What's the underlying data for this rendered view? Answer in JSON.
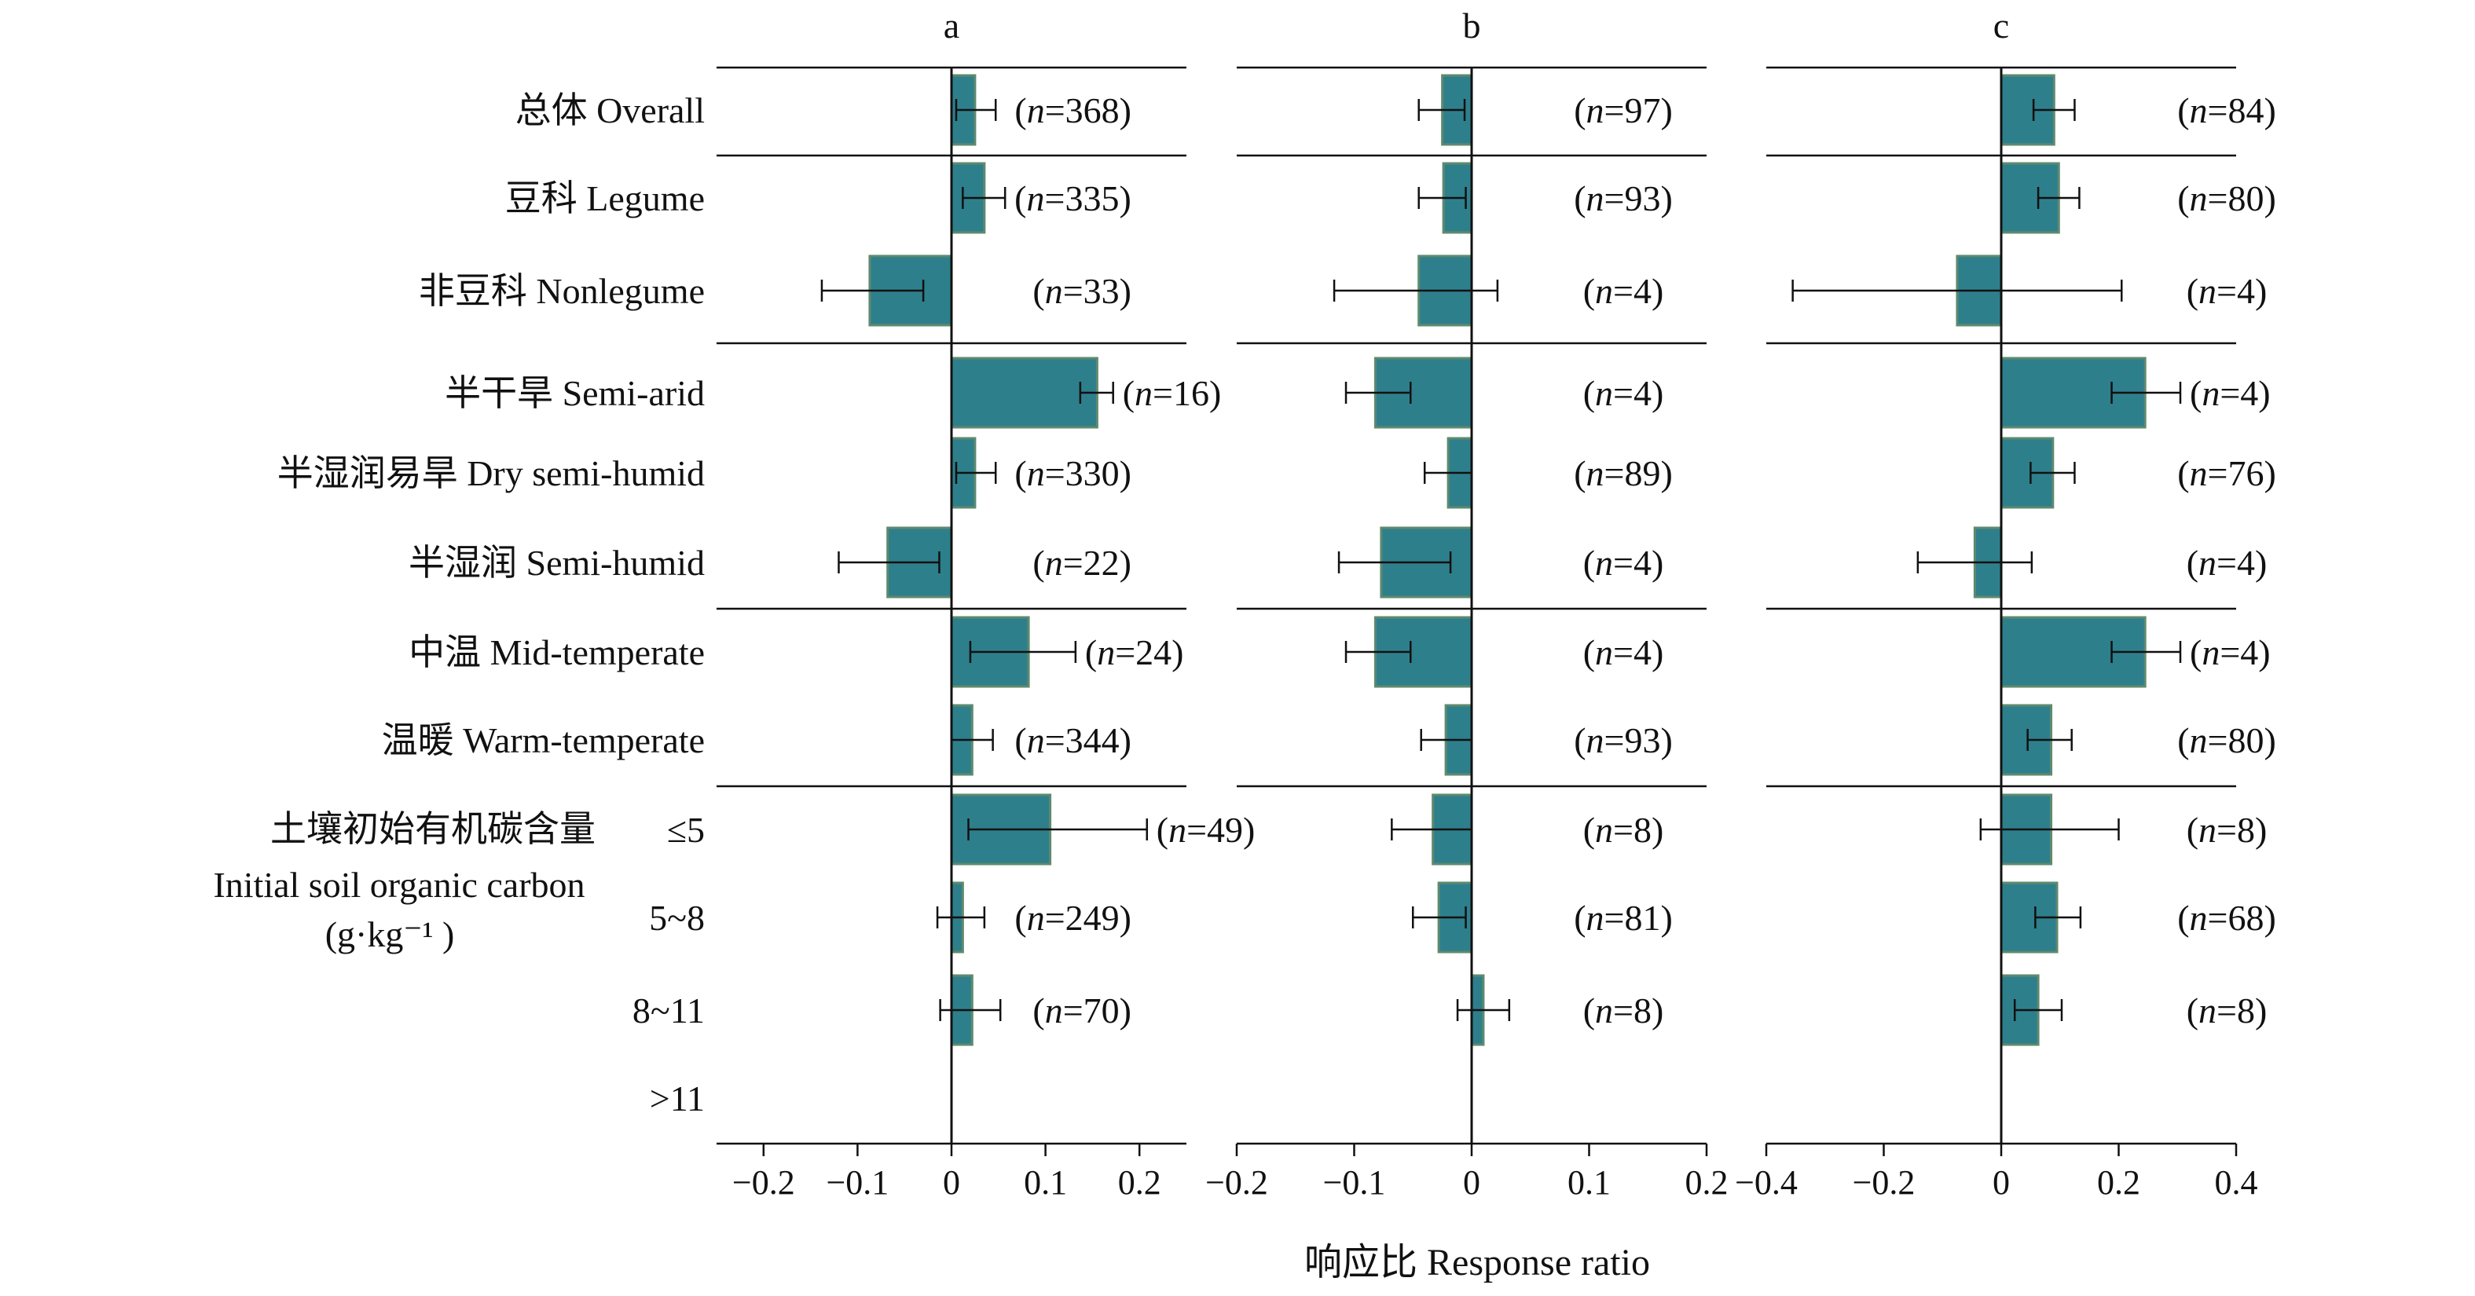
{
  "chart_data": {
    "type": "bar",
    "orientation": "horizontal",
    "xlabel": "响应比 Response ratio",
    "bar_color": "#2e7f8c",
    "bar_edge_color": "#5e8a6e",
    "row_labels": [
      "总体 Overall",
      "豆科 Legume",
      "非豆科 Nonlegume",
      "半干旱 Semi-arid",
      "半湿润易旱 Dry semi-humid",
      "半湿润 Semi-humid",
      "中温 Mid-temperate",
      "温暖 Warm-temperate",
      "≤5",
      "5~8",
      "8~11",
      ">11"
    ],
    "group_label": {
      "line1": "土壤初始有机碳含量",
      "line2": "Initial soil organic carbon",
      "line3": "(g·kg⁻¹ )"
    },
    "panels": [
      {
        "title": "a",
        "xlim": [
          -0.25,
          0.25
        ],
        "xticks": [
          -0.2,
          -0.1,
          0,
          0.1,
          0.2
        ],
        "xtick_labels": [
          "−0.2",
          "−0.1",
          "0",
          "0.1",
          "0.2"
        ],
        "values": [
          0.025,
          0.035,
          -0.087,
          0.155,
          0.025,
          -0.068,
          0.082,
          0.022,
          0.105,
          0.012,
          0.022,
          null
        ],
        "err_low": [
          0.005,
          0.012,
          -0.138,
          0.137,
          0.005,
          -0.12,
          0.02,
          0.0,
          0.018,
          -0.015,
          -0.012,
          null
        ],
        "err_high": [
          0.047,
          0.057,
          -0.03,
          0.172,
          0.047,
          -0.013,
          0.132,
          0.044,
          0.208,
          0.035,
          0.052,
          null
        ],
        "n_labels": [
          "(n=368)",
          "(n=335)",
          "(n=33)",
          "(n=16)",
          "(n=330)",
          "(n=22)",
          "(n=24)",
          "(n=344)",
          "(n=49)",
          "(n=249)",
          "(n=70)",
          ""
        ]
      },
      {
        "title": "b",
        "xlim": [
          -0.2,
          0.2
        ],
        "xticks": [
          -0.2,
          -0.1,
          0,
          0.1,
          0.2
        ],
        "xtick_labels": [
          "−0.2",
          "−0.1",
          "0",
          "0.1",
          "0.2"
        ],
        "values": [
          -0.025,
          -0.024,
          -0.045,
          -0.082,
          -0.02,
          -0.077,
          -0.082,
          -0.022,
          -0.033,
          -0.028,
          0.01,
          null
        ],
        "err_low": [
          -0.045,
          -0.045,
          -0.117,
          -0.107,
          -0.04,
          -0.113,
          -0.107,
          -0.043,
          -0.068,
          -0.05,
          -0.012,
          null
        ],
        "err_high": [
          -0.006,
          -0.005,
          0.022,
          -0.052,
          0.0,
          -0.018,
          -0.052,
          0.0,
          0.0,
          -0.005,
          0.032,
          null
        ],
        "n_labels": [
          "(n=97)",
          "(n=93)",
          "(n=4)",
          "(n=4)",
          "(n=89)",
          "(n=4)",
          "(n=4)",
          "(n=93)",
          "(n=8)",
          "(n=81)",
          "(n=8)",
          ""
        ]
      },
      {
        "title": "c",
        "xlim": [
          -0.4,
          0.4
        ],
        "xticks": [
          -0.4,
          -0.2,
          0,
          0.2,
          0.4
        ],
        "xtick_labels": [
          "−0.4",
          "−0.2",
          "0",
          "0.2",
          "0.4"
        ],
        "values": [
          0.09,
          0.098,
          -0.075,
          0.245,
          0.088,
          -0.045,
          0.245,
          0.085,
          0.085,
          0.095,
          0.063,
          null
        ],
        "err_low": [
          0.055,
          0.063,
          -0.355,
          0.188,
          0.05,
          -0.142,
          0.188,
          0.045,
          -0.035,
          0.058,
          0.023,
          null
        ],
        "err_high": [
          0.125,
          0.133,
          0.205,
          0.305,
          0.125,
          0.052,
          0.305,
          0.12,
          0.2,
          0.135,
          0.103,
          null
        ],
        "n_labels": [
          "(n=84)",
          "(n=80)",
          "(n=4)",
          "(n=4)",
          "(n=76)",
          "(n=4)",
          "(n=4)",
          "(n=80)",
          "(n=8)",
          "(n=68)",
          "(n=8)",
          ""
        ]
      }
    ]
  }
}
